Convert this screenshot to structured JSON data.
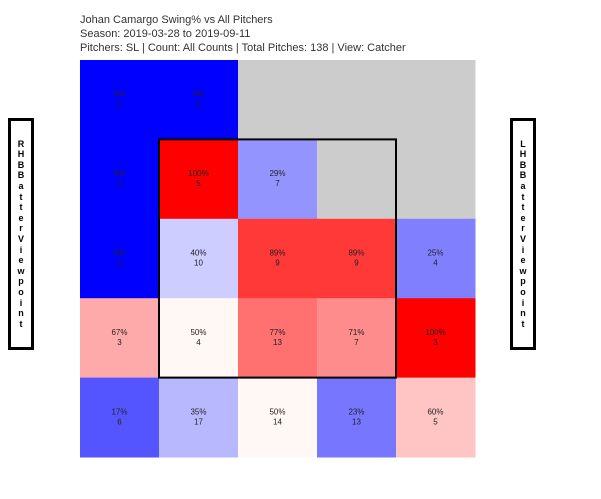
{
  "header": {
    "line1": "Johan Camargo Swing% vs All Pitchers",
    "line2": "Season: 2019-03-28 to 2019-09-11",
    "line3": "Pitchers: SL | Count: All Counts | Total Pitches: 138 | View: Catcher"
  },
  "side_labels": {
    "left": "RHB Batter Viewpoint",
    "right": "LHB Batter Viewpoint"
  },
  "colors": {
    "no_data": "#cccccc",
    "strike_zone_border": "#000000"
  },
  "chart_data": {
    "type": "heatmap",
    "title": "Johan Camargo Swing% vs All Pitchers",
    "rows": 5,
    "cols": 5,
    "strike_zone": {
      "rows": [
        1,
        3
      ],
      "cols": [
        1,
        3
      ]
    },
    "cells": [
      [
        {
          "pct": "0%",
          "n": "1",
          "color": "#0000ff"
        },
        {
          "pct": "0%",
          "n": "1",
          "color": "#0000ff"
        },
        {
          "pct": "",
          "n": "",
          "color": "#cccccc"
        },
        {
          "pct": "",
          "n": "",
          "color": "#cccccc"
        },
        {
          "pct": "",
          "n": "",
          "color": "#cccccc"
        }
      ],
      [
        {
          "pct": "0%",
          "n": "4",
          "color": "#0000ff"
        },
        {
          "pct": "100%",
          "n": "5",
          "color": "#ff0000"
        },
        {
          "pct": "29%",
          "n": "7",
          "color": "#9494ff"
        },
        {
          "pct": "",
          "n": "",
          "color": "#cccccc"
        },
        {
          "pct": "",
          "n": "",
          "color": "#cccccc"
        }
      ],
      [
        {
          "pct": "0%",
          "n": "2",
          "color": "#0000ff"
        },
        {
          "pct": "40%",
          "n": "10",
          "color": "#cdcdff"
        },
        {
          "pct": "89%",
          "n": "9",
          "color": "#ff3838"
        },
        {
          "pct": "89%",
          "n": "9",
          "color": "#ff3838"
        },
        {
          "pct": "25%",
          "n": "4",
          "color": "#8080ff"
        }
      ],
      [
        {
          "pct": "67%",
          "n": "3",
          "color": "#ffaaaa"
        },
        {
          "pct": "50%",
          "n": "4",
          "color": "#fff8f4"
        },
        {
          "pct": "77%",
          "n": "13",
          "color": "#ff7070"
        },
        {
          "pct": "71%",
          "n": "7",
          "color": "#ff8c8c"
        },
        {
          "pct": "100%",
          "n": "3",
          "color": "#ff0000"
        }
      ],
      [
        {
          "pct": "17%",
          "n": "6",
          "color": "#5555ff"
        },
        {
          "pct": "35%",
          "n": "17",
          "color": "#b8b8ff"
        },
        {
          "pct": "50%",
          "n": "14",
          "color": "#fff8f4"
        },
        {
          "pct": "23%",
          "n": "13",
          "color": "#7676ff"
        },
        {
          "pct": "60%",
          "n": "5",
          "color": "#ffc4c4"
        }
      ]
    ]
  }
}
